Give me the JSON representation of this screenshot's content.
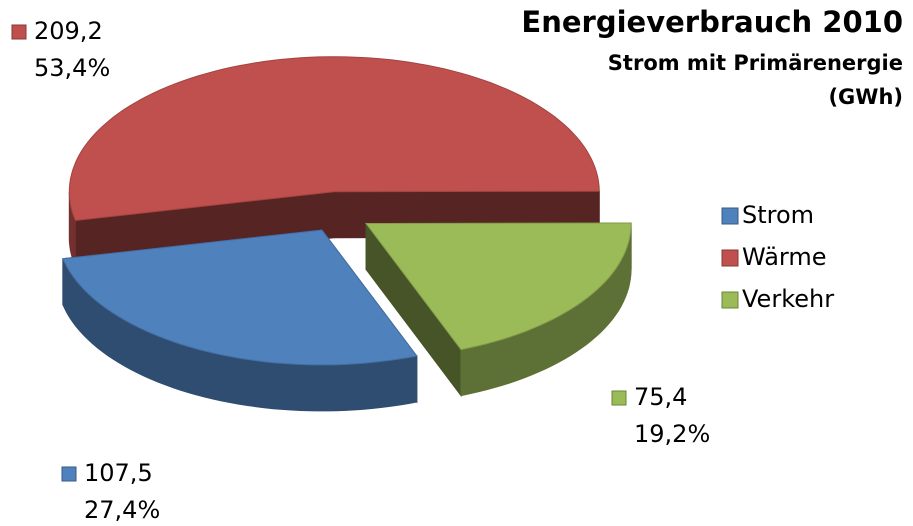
{
  "chart_data": {
    "type": "pie3d",
    "title": "Energieverbrauch 2010",
    "subtitle": [
      "Strom mit Primärenergie",
      "(GWh)"
    ],
    "categories": [
      "Strom",
      "Wärme",
      "Verkehr"
    ],
    "values": [
      107.5,
      209.2,
      75.4
    ],
    "value_labels": [
      "107,5",
      "209,2",
      "75,4"
    ],
    "percent_labels": [
      "27,4%",
      "53,4%",
      "19,2%"
    ],
    "colors": [
      "#4f81bd",
      "#c0504d",
      "#9bbb59"
    ],
    "legend": "right"
  }
}
